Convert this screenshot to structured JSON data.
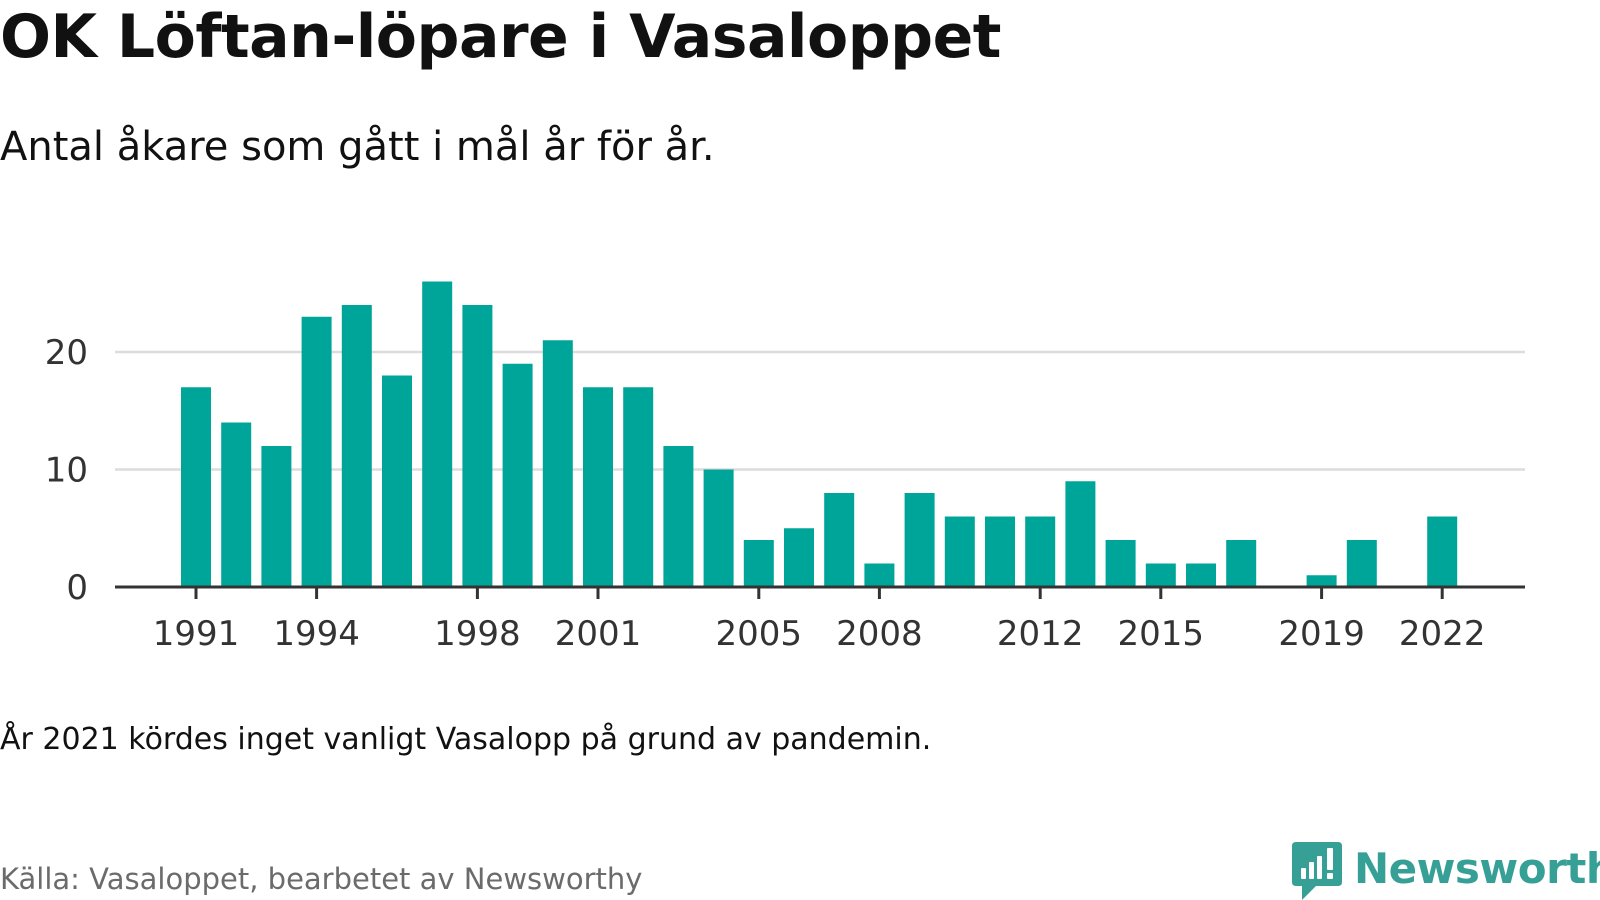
{
  "header": {
    "title": "OK Löftan-löpare i Vasaloppet",
    "subtitle": "Antal åkare som gått i mål år för år."
  },
  "footer": {
    "note": "År 2021 kördes inget vanligt Vasalopp på grund av pandemin.",
    "source": "Källa: Vasaloppet, bearbetet av Newsworthy",
    "brand": "Newsworthy",
    "brand_icon": "newsworthy-logo-icon"
  },
  "colors": {
    "bar": "#00a59a",
    "grid": "#dcdcdc",
    "axis": "#333333",
    "brand": "#36a096",
    "source_text": "#6b6b6b"
  },
  "chart_data": {
    "type": "bar",
    "title": "OK Löftan-löpare i Vasaloppet",
    "subtitle": "Antal åkare som gått i mål år för år.",
    "xlabel": "",
    "ylabel": "",
    "ylim": [
      0,
      26
    ],
    "grid": true,
    "legend": "none",
    "x": [
      1991,
      1992,
      1993,
      1994,
      1995,
      1996,
      1997,
      1998,
      1999,
      2000,
      2001,
      2002,
      2003,
      2004,
      2005,
      2006,
      2007,
      2008,
      2009,
      2010,
      2011,
      2012,
      2013,
      2014,
      2015,
      2016,
      2017,
      2018,
      2019,
      2020,
      2021,
      2022
    ],
    "values": [
      17,
      14,
      12,
      23,
      24,
      18,
      26,
      24,
      19,
      21,
      17,
      17,
      12,
      10,
      4,
      5,
      8,
      2,
      8,
      6,
      6,
      6,
      9,
      4,
      2,
      2,
      4,
      0,
      1,
      4,
      0,
      6
    ],
    "x_tick_labels": [
      "1991",
      "1994",
      "1998",
      "2001",
      "2005",
      "2008",
      "2012",
      "2015",
      "2019",
      "2022"
    ],
    "y_ticks": [
      0,
      10,
      20
    ]
  }
}
